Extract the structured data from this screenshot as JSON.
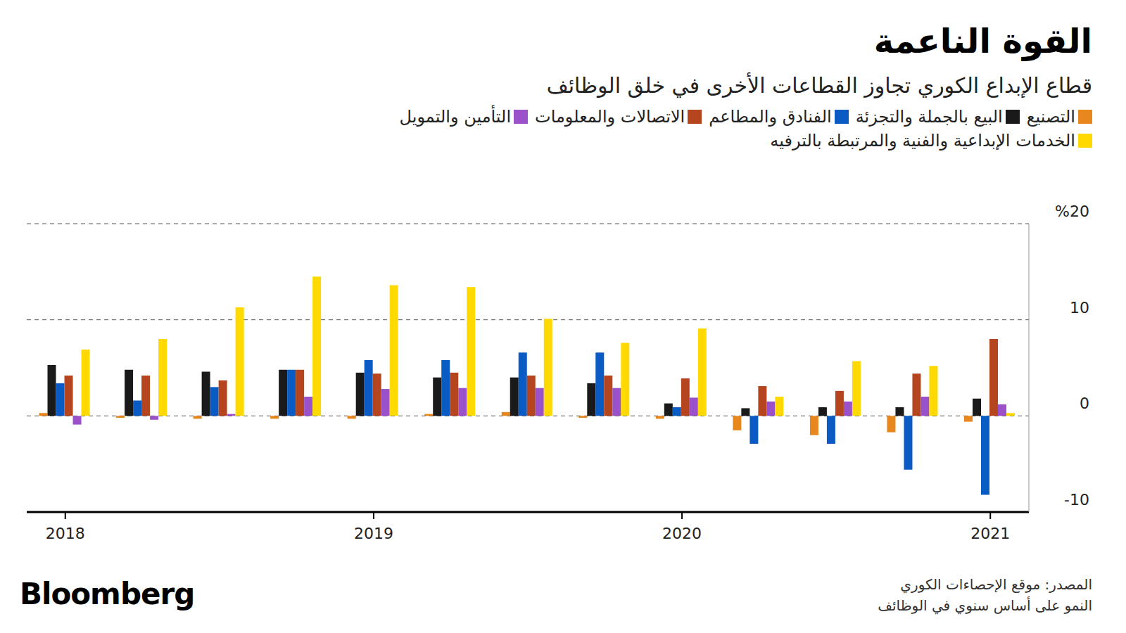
{
  "chart_data": {
    "type": "bar",
    "title": "القوة الناعمة",
    "subtitle": "قطاع الإبداع الكوري تجاوز القطاعات الأخرى في خلق الوظائف",
    "source": "المصدر: موقع الإحصاءات الكوري",
    "note": "النمو على أساس سنوي في الوظائف",
    "brand": "Bloomberg",
    "categories": [
      "2018",
      null,
      null,
      null,
      "2019",
      null,
      null,
      null,
      "2020",
      null,
      null,
      null,
      "2021"
    ],
    "series": [
      {
        "name": "التصنيع",
        "color": "#e8871e",
        "values": [
          0.3,
          -0.2,
          -0.3,
          -0.3,
          -0.3,
          0.2,
          0.4,
          -0.2,
          -0.3,
          -1.5,
          -2.0,
          -1.7,
          -0.6
        ]
      },
      {
        "name": "البيع بالجملة والتجزئة",
        "color": "#1a1a1a",
        "values": [
          5.3,
          4.8,
          4.6,
          4.8,
          4.5,
          4.0,
          4.0,
          3.4,
          1.3,
          0.8,
          0.9,
          0.9,
          1.8
        ]
      },
      {
        "name": "الفنادق والمطاعم",
        "color": "#0a5bc4",
        "values": [
          3.4,
          1.6,
          3.0,
          4.8,
          5.8,
          5.8,
          6.6,
          6.6,
          0.9,
          -2.9,
          -2.9,
          -5.6,
          -8.2
        ]
      },
      {
        "name": "الاتصالات والمعلومات",
        "color": "#b4451f",
        "values": [
          4.2,
          4.2,
          3.7,
          4.8,
          4.4,
          4.5,
          4.2,
          4.2,
          3.9,
          3.1,
          2.6,
          4.4,
          8.0
        ]
      },
      {
        "name": "التأمين والتمويل",
        "color": "#9b51c9",
        "values": [
          -0.9,
          -0.4,
          0.2,
          2.0,
          2.8,
          2.9,
          2.9,
          2.9,
          1.9,
          1.5,
          1.5,
          2.0,
          1.2
        ]
      },
      {
        "name": "الخدمات الإبداعية والفنية والمرتبطة بالترفيه",
        "color": "#ffd900",
        "values": [
          6.9,
          8.0,
          11.3,
          14.5,
          13.6,
          13.4,
          10.1,
          7.6,
          9.1,
          2.0,
          5.7,
          5.2,
          0.3
        ]
      }
    ],
    "ylim": [
      -10,
      20
    ],
    "yticks": [
      -10,
      0,
      10,
      {
        "value": 20,
        "label": "%20"
      }
    ],
    "grid": true
  }
}
